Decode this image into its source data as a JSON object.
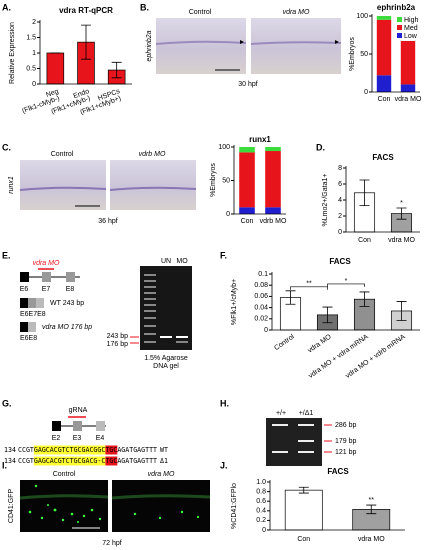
{
  "panel_labels": [
    "A.",
    "B.",
    "C.",
    "D.",
    "E.",
    "F.",
    "G.",
    "H.",
    "I.",
    "J."
  ],
  "chart_data": [
    {
      "type": "bar",
      "title": "vdra RT-qPCR",
      "y_label": "Relative Expression",
      "categories": [
        "Neg",
        "Endo",
        "HSPCs"
      ],
      "category_notes": [
        "(Flk1-cMyb-)",
        "(Flk1+cMyb-)",
        "(Flk1+cMyb+)"
      ],
      "values": [
        1.0,
        1.35,
        0.45
      ],
      "errors": [
        0,
        0.55,
        0.25
      ],
      "colors": [
        "#e8141b",
        "#e8141b",
        "#e8141b"
      ],
      "ylim": [
        0,
        2
      ],
      "yticks": [
        0,
        0.5,
        1,
        1.5,
        2
      ]
    },
    {
      "type": "bar",
      "stacked": true,
      "title": "ephrinb2a",
      "y_label": "%Embryos",
      "categories": [
        "Con",
        "vdra MO"
      ],
      "series": [
        {
          "name": "Low",
          "color": "#1f1fd0",
          "values": [
            22,
            10
          ]
        },
        {
          "name": "Med",
          "color": "#e8141b",
          "values": [
            73,
            85
          ]
        },
        {
          "name": "High",
          "color": "#3ddc3d",
          "values": [
            5,
            5
          ]
        }
      ],
      "ylim": [
        0,
        100
      ],
      "yticks": [
        0,
        50,
        100
      ],
      "legend": true
    },
    {
      "type": "bar",
      "stacked": true,
      "title": "runx1",
      "y_label": "%Embryos",
      "categories": [
        "Con",
        "vdrb MO"
      ],
      "series": [
        {
          "name": "Low",
          "color": "#1f1fd0",
          "values": [
            10,
            10
          ]
        },
        {
          "name": "Med",
          "color": "#e8141b",
          "values": [
            82,
            84
          ]
        },
        {
          "name": "High",
          "color": "#3ddc3d",
          "values": [
            8,
            6
          ]
        }
      ],
      "ylim": [
        0,
        100
      ],
      "yticks": [
        0,
        50,
        100
      ],
      "legend": false
    },
    {
      "type": "bar",
      "title": "FACS",
      "y_label": "%Lmo2+/Gata1+",
      "categories": [
        "Con",
        "vdra MO"
      ],
      "values": [
        4.9,
        2.3
      ],
      "errors": [
        1.6,
        0.7
      ],
      "colors": [
        "#ffffff",
        "#a0a0a0"
      ],
      "significance": [
        null,
        "*"
      ],
      "ylim": [
        0,
        8
      ],
      "yticks": [
        0,
        2,
        4,
        6,
        8
      ]
    },
    {
      "type": "bar",
      "title": "FACS",
      "y_label": "%Flk1+/cMyb+",
      "categories": [
        "Control",
        "vdra MO",
        "vdra MO + vdra mRNA",
        "vdra MO + vdrb mRNA"
      ],
      "values": [
        0.058,
        0.027,
        0.055,
        0.034
      ],
      "errors": [
        0.012,
        0.014,
        0.013,
        0.017
      ],
      "colors": [
        "#ffffff",
        "#707070",
        "#909090",
        "#d0d0d0"
      ],
      "comparisons": [
        {
          "label": "**",
          "between": [
            "Control",
            "vdra MO"
          ]
        },
        {
          "label": "*",
          "between": [
            "vdra MO",
            "vdra MO + vdra mRNA"
          ]
        }
      ],
      "ylim": [
        0,
        0.1
      ],
      "yticks": [
        0,
        0.02,
        0.04,
        0.06,
        0.08,
        0.1
      ]
    },
    {
      "type": "bar",
      "title": "FACS",
      "y_label": "%CD41:GFPlo",
      "categories": [
        "Con",
        "vdra MO"
      ],
      "values": [
        0.83,
        0.43
      ],
      "errors": [
        0.06,
        0.09
      ],
      "colors": [
        "#ffffff",
        "#a0a0a0"
      ],
      "significance": [
        null,
        "**"
      ],
      "ylim": [
        0,
        1
      ],
      "yticks": [
        0,
        0.2,
        0.4,
        0.6,
        0.8,
        {
          "value": 1,
          "label": "1.0"
        }
      ]
    }
  ],
  "figure": {
    "b": {
      "columns": [
        "Control",
        "vdra MO"
      ],
      "gene": "ephrinb2a",
      "stage": "30 hpf"
    },
    "c": {
      "columns": [
        "Control",
        "vdrb MO"
      ],
      "gene": "runx1",
      "stage": "36 hpf"
    },
    "e": {
      "exons": [
        "E6",
        "E7",
        "E8"
      ],
      "morpholino": "vdra MO",
      "wt_product": "WT 243 bp",
      "wt_exons": "E6E7E8",
      "mo_product": "vdra MO 176 bp",
      "mo_exons": "E6E8",
      "lanes": [
        "UN",
        "MO"
      ],
      "bands": [
        "243 bp",
        "176 bp"
      ],
      "gel_caption": [
        "1.5% Agarose",
        "DNA gel"
      ]
    },
    "g": {
      "guide": "gRNA",
      "exons": [
        "E2",
        "E3",
        "E4"
      ],
      "sequences": [
        {
          "start": "134",
          "parts": [
            {
              "text": "CCGT"
            },
            {
              "text": "GAGCACGTCTGCGACGGC",
              "highlight": "#ffff33"
            },
            {
              "text": "TGC",
              "highlight": "#e8141b"
            },
            {
              "text": "AGATGAGTTT"
            }
          ],
          "genotype": "WT"
        },
        {
          "start": "134",
          "parts": [
            {
              "text": "CCGT"
            },
            {
              "text": "GAGCACGTCTGCGACG-C",
              "highlight": "#ffff33"
            },
            {
              "text": "TGC",
              "highlight": "#e8141b"
            },
            {
              "text": "AGATGAGTTT"
            }
          ],
          "genotype": "Δ1"
        }
      ]
    },
    "h": {
      "lanes": [
        "+/+",
        "+/Δ1"
      ],
      "bands": [
        "286 bp",
        "179 bp",
        "121 bp"
      ]
    },
    "i": {
      "columns": [
        "Control",
        "vdra MO"
      ],
      "marker": "CD41:GFP",
      "stage": "72 hpf"
    }
  }
}
